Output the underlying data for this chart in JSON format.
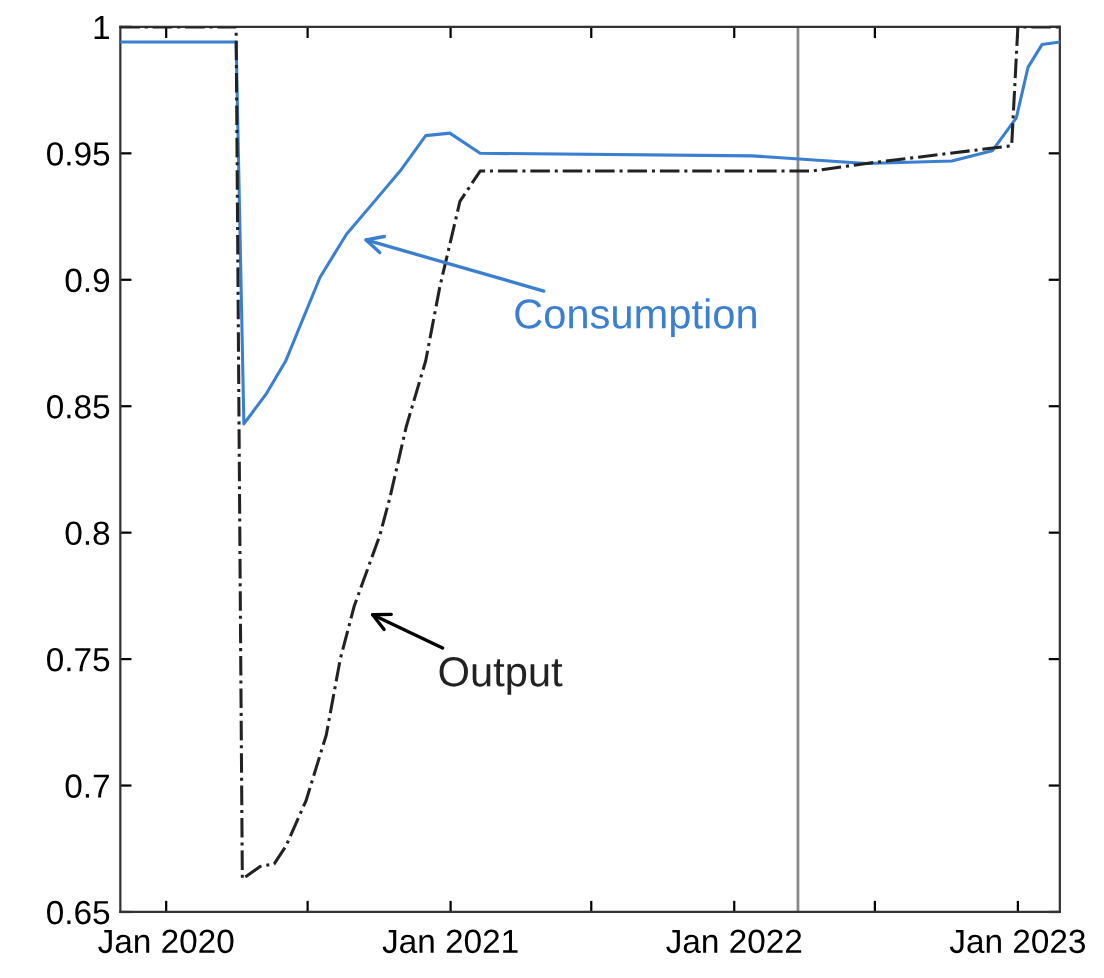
{
  "chart_data": {
    "type": "line",
    "xlim": [
      "2019-11-03",
      "2023-02-24"
    ],
    "xticks": [
      {
        "value": "2020-01-01",
        "label": "Jan 2020"
      },
      {
        "value": "2020-07-01",
        "label": null
      },
      {
        "value": "2021-01-01",
        "label": "Jan 2021"
      },
      {
        "value": "2021-07-01",
        "label": null
      },
      {
        "value": "2022-01-01",
        "label": "Jan 2022"
      },
      {
        "value": "2022-07-01",
        "label": null
      },
      {
        "value": "2023-01-01",
        "label": "Jan 2023"
      }
    ],
    "ylim": [
      0.65,
      1
    ],
    "yticks": [
      0.65,
      0.7,
      0.75,
      0.8,
      0.85,
      0.9,
      0.95,
      1
    ],
    "grid": false,
    "legend": false,
    "series": [
      {
        "name": "Consumption",
        "color": "#3a7fd0",
        "line_style": "solid",
        "x": [
          "2019-11-03",
          "2020-03-31",
          "2020-04-10",
          "2020-05-09",
          "2020-06-03",
          "2020-07-17",
          "2020-08-20",
          "2020-09-25",
          "2020-10-28",
          "2020-11-30",
          "2020-12-31",
          "2021-02-08",
          "2022-01-24",
          "2022-06-20",
          "2022-10-08",
          "2022-11-29",
          "2022-12-30",
          "2023-01-14",
          "2023-02-01",
          "2023-02-24"
        ],
        "values": [
          0.994,
          0.994,
          0.843,
          0.855,
          0.868,
          0.901,
          0.918,
          0.931,
          0.943,
          0.957,
          0.958,
          0.95,
          0.949,
          0.946,
          0.947,
          0.951,
          0.964,
          0.984,
          0.993,
          0.994
        ]
      },
      {
        "name": "Output",
        "color": "#222222",
        "line_style": "dashed",
        "x": [
          "2019-11-03",
          "2020-03-31",
          "2020-04-08",
          "2020-05-01",
          "2020-05-19",
          "2020-06-03",
          "2020-06-29",
          "2020-07-25",
          "2020-08-12",
          "2020-08-30",
          "2020-10-02",
          "2020-10-15",
          "2020-11-05",
          "2020-11-30",
          "2020-12-18",
          "2021-01-13",
          "2021-02-08",
          "2022-04-11",
          "2022-06-20",
          "2022-12-24",
          "2023-01-01",
          "2023-02-24"
        ],
        "values": [
          1,
          1,
          0.663,
          0.668,
          0.669,
          0.676,
          0.694,
          0.72,
          0.75,
          0.771,
          0.799,
          0.814,
          0.842,
          0.868,
          0.897,
          0.931,
          0.943,
          0.943,
          0.946,
          0.953,
          1,
          1
        ]
      }
    ],
    "ref_lines": [
      {
        "axis": "x",
        "value": "2022-03-24",
        "label": null,
        "color": "#888888"
      }
    ]
  }
}
